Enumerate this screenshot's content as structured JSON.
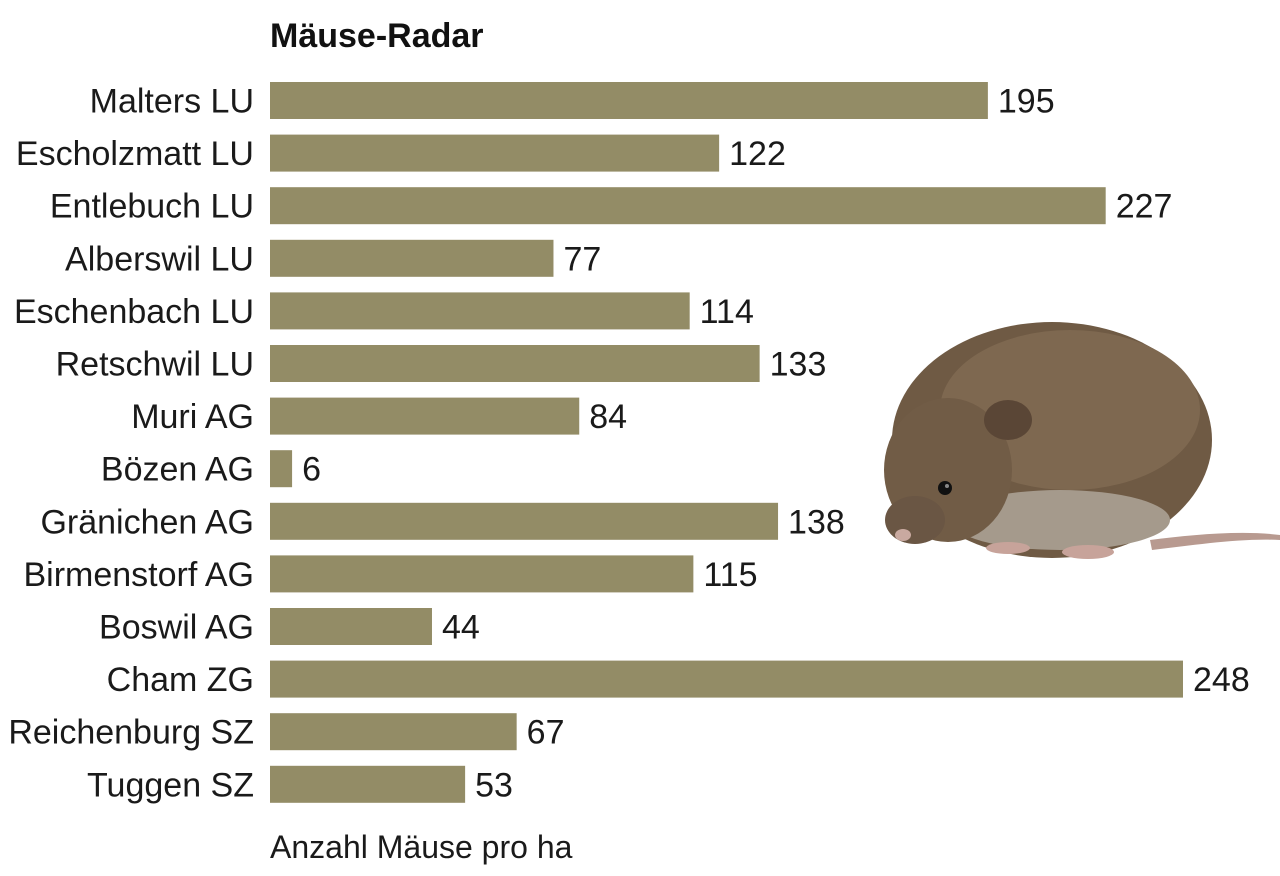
{
  "colors": {
    "bar": "#938c66",
    "text": "#1a1a1a",
    "background": "#ffffff"
  },
  "illustration": {
    "icon": "field-vole-mouse-photo"
  },
  "chart_data": {
    "type": "bar",
    "orientation": "horizontal",
    "title": "Mäuse-Radar",
    "xlabel": "Anzahl Mäuse pro ha",
    "ylabel": "",
    "xlim": [
      0,
      248
    ],
    "grid": false,
    "legend": "none",
    "categories": [
      "Malters LU",
      "Escholzmatt LU",
      "Entlebuch LU",
      "Alberswil LU",
      "Eschenbach LU",
      "Retschwil LU",
      "Muri AG",
      "Bözen AG",
      "Gränichen AG",
      "Birmenstorf AG",
      "Boswil AG",
      "Cham ZG",
      "Reichenburg SZ",
      "Tuggen SZ"
    ],
    "values": [
      195,
      122,
      227,
      77,
      114,
      133,
      84,
      6,
      138,
      115,
      44,
      248,
      67,
      53
    ]
  }
}
